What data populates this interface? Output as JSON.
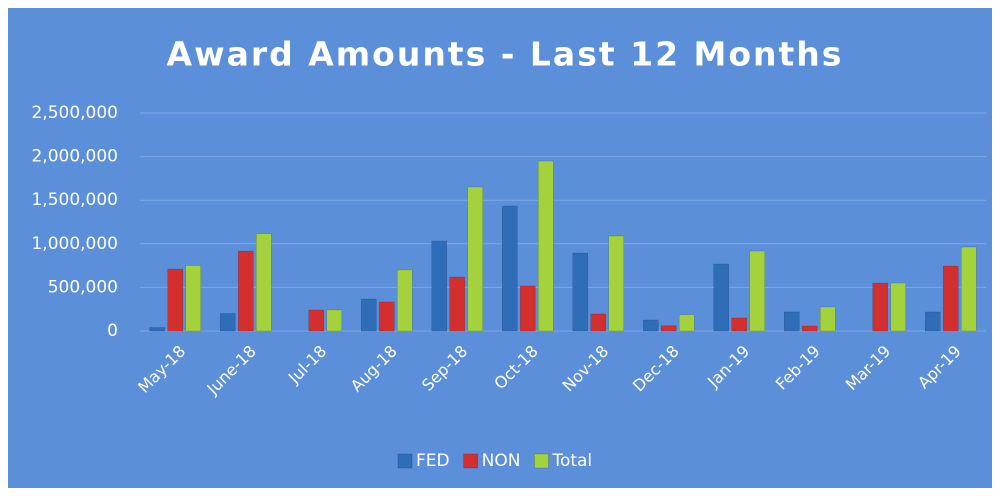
{
  "chart_data": {
    "type": "bar",
    "title": "Award Amounts - Last 12 Months",
    "categories": [
      "May-18",
      "June-18",
      "Jul-18",
      "Aug-18",
      "Sep-18",
      "Oct-18",
      "Nov-18",
      "Dec-18",
      "Jan-19",
      "Feb-19",
      "Mar-19",
      "Apr-19"
    ],
    "series": [
      {
        "name": "FED",
        "color": "#2f6db8",
        "values": [
          40000,
          200000,
          0,
          367000,
          1032000,
          1433000,
          894000,
          126000,
          768000,
          218000,
          0,
          218000
        ]
      },
      {
        "name": "NON",
        "color": "#d32f2f",
        "values": [
          711000,
          917000,
          241000,
          333000,
          619000,
          516000,
          195000,
          60000,
          149000,
          57000,
          550000,
          745000
        ]
      },
      {
        "name": "Total",
        "color": "#a4d23c",
        "values": [
          751000,
          1117000,
          241000,
          700000,
          1651000,
          1949000,
          1089000,
          186000,
          917000,
          275000,
          550000,
          963000
        ]
      }
    ],
    "ylim": [
      0,
      2500000
    ],
    "yticks": [
      0,
      {
        "value": 500000,
        "label": "500,000"
      },
      {
        "value": 1000000,
        "label": "1,000,000"
      },
      {
        "value": 1500000,
        "label": "1,500,000"
      },
      {
        "value": 2000000,
        "label": "2,000,000"
      },
      {
        "value": 2500000,
        "label": "2,500,000"
      }
    ],
    "grid": true,
    "legend": "bottom"
  }
}
